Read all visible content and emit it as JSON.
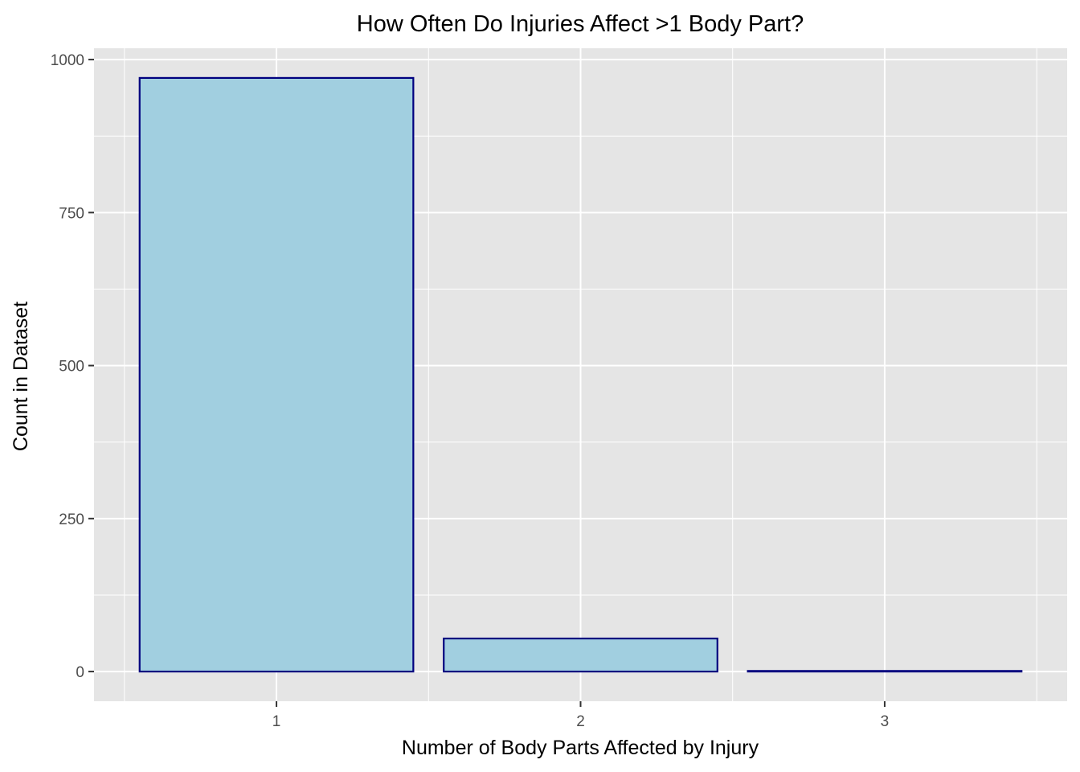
{
  "chart_data": {
    "type": "bar",
    "title": "How Often Do Injuries Affect >1 Body Part?",
    "xlabel": "Number of Body Parts Affected by Injury",
    "ylabel": "Count in Dataset",
    "categories": [
      "1",
      "2",
      "3"
    ],
    "values": [
      970,
      54,
      1
    ],
    "ylim": [
      -48.5,
      1018.5
    ],
    "yticks": [
      0,
      250,
      500,
      750,
      1000
    ],
    "ytick_labels": [
      "0",
      "250",
      "500",
      "750",
      "1000"
    ],
    "grid": true,
    "legend": "none",
    "colors": {
      "bar_fill": "#a1cfe0",
      "bar_outline": "#00007f",
      "panel_background": "#e5e5e5",
      "grid_line": "#ffffff",
      "tick_label": "#4d4d4d"
    }
  }
}
